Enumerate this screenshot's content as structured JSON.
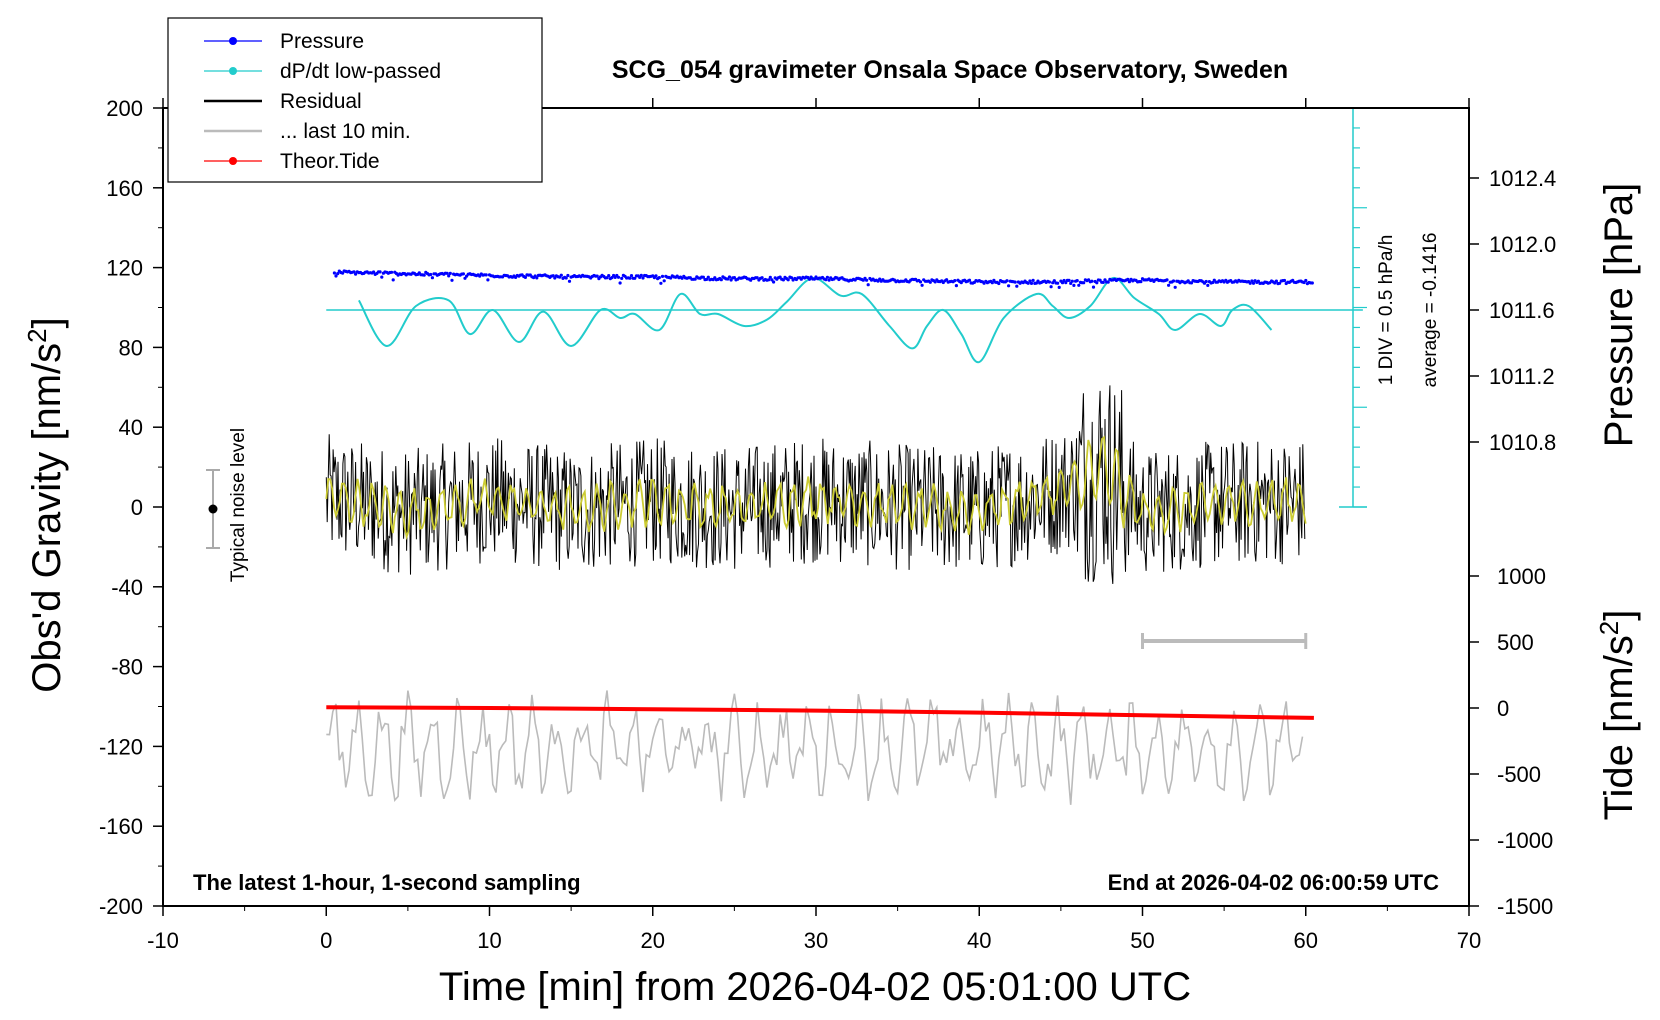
{
  "chart_data": {
    "type": "line",
    "title": "SCG_054 gravimeter Onsala Space Observatory, Sweden",
    "xlabel": "Time [min] from 2026-04-02 05:01:00 UTC",
    "xlim": [
      -10,
      70
    ],
    "x_ticks": [
      "-10",
      "0",
      "10",
      "20",
      "30",
      "40",
      "50",
      "60",
      "70"
    ],
    "y_left": {
      "label": "Obs'd Gravity [nm/s",
      "label_sup": "2",
      "label_end": "]",
      "lim": [
        -200,
        200
      ],
      "ticks": [
        "-200",
        "-160",
        "-120",
        "-80",
        "-40",
        "0",
        "40",
        "80",
        "120",
        "160",
        "200"
      ]
    },
    "y_right_pressure": {
      "label": "Pressure [hPa]",
      "ticks": [
        "1010.8",
        "1011.2",
        "1011.6",
        "1012.0",
        "1012.4"
      ],
      "tick_values": [
        1010.8,
        1011.2,
        1011.6,
        1012.0,
        1012.4
      ]
    },
    "y_right_tide": {
      "label": "Tide [nm/s",
      "label_sup": "2",
      "label_end": "]",
      "ticks": [
        "1000",
        "500",
        "0",
        "-500",
        "-1000",
        "-1500"
      ],
      "tick_values": [
        1000,
        500,
        0,
        -500,
        -1000,
        -1500
      ]
    },
    "legend": {
      "position": "top-left",
      "entries": [
        {
          "name": "Pressure",
          "color": "#0000ff",
          "marker": true
        },
        {
          "name": "dP/dt low-passed",
          "color": "#22cccc",
          "marker": true
        },
        {
          "name": "Residual",
          "color": "#000000",
          "marker": false
        },
        {
          "name": "... last 10 min.",
          "color": "#bbbbbb",
          "marker": false
        },
        {
          "name": "Theor.Tide",
          "color": "#ff0000",
          "marker": true
        }
      ]
    },
    "annotations": {
      "noise": "Typical noise level",
      "latest": "The latest 1-hour, 1-second sampling",
      "end": "End at 2026-04-02 06:00:59 UTC",
      "div": "1 DIV = 0.5 hPa/h",
      "average": "average = -0.1416"
    },
    "series": [
      {
        "name": "Pressure",
        "color": "#0000ff",
        "unit": "hPa",
        "x": [
          0,
          5,
          10,
          15,
          20,
          25,
          30,
          35,
          40,
          45,
          50,
          55,
          60
        ],
        "values": [
          1011.83,
          1011.82,
          1011.81,
          1011.8,
          1011.8,
          1011.79,
          1011.79,
          1011.78,
          1011.77,
          1011.77,
          1011.78,
          1011.77,
          1011.77
        ]
      },
      {
        "name": "dP/dt low-passed",
        "color": "#22cccc",
        "x": [
          2,
          3.7,
          5.5,
          7.5,
          8.8,
          10.2,
          11.8,
          13.3,
          15,
          16.8,
          18,
          18.9,
          20.4,
          21.7,
          22.9,
          24,
          25.6,
          27,
          28.2,
          29.8,
          31.5,
          32.8,
          34.5,
          35.9,
          36.8,
          37.8,
          38.9,
          40,
          41.5,
          43.5,
          44.5,
          45.5,
          46.8,
          48.2,
          49.5,
          51,
          52,
          53.5,
          54.8,
          55.5,
          56.5,
          57.9
        ],
        "values": [
          0.12,
          -0.45,
          0.05,
          0.12,
          -0.3,
          0.0,
          -0.4,
          -0.02,
          -0.45,
          0.0,
          -0.1,
          -0.05,
          -0.25,
          0.2,
          -0.05,
          -0.05,
          -0.2,
          -0.12,
          0.1,
          0.4,
          0.18,
          0.2,
          -0.2,
          -0.48,
          -0.2,
          0.0,
          -0.3,
          -0.65,
          -0.1,
          0.2,
          0.05,
          -0.1,
          0.05,
          0.4,
          0.15,
          -0.05,
          -0.25,
          -0.05,
          -0.2,
          0.0,
          0.05,
          -0.25
        ]
      },
      {
        "name": "Residual",
        "color": "#000000",
        "x": [
          0,
          5,
          10,
          15,
          20,
          25,
          30,
          35,
          40,
          45,
          47.5,
          50,
          55,
          60
        ],
        "values": [
          5,
          -3,
          4,
          -2,
          3,
          -1,
          4,
          0,
          -2,
          8,
          20,
          -3,
          2,
          3
        ]
      },
      {
        "name": "Theor.Tide",
        "color": "#ff0000",
        "unit": "nm/s2",
        "x": [
          0,
          10,
          20,
          30,
          40,
          50,
          60.5
        ],
        "values": [
          5,
          0,
          -10,
          -20,
          -35,
          -55,
          -75
        ]
      }
    ]
  }
}
